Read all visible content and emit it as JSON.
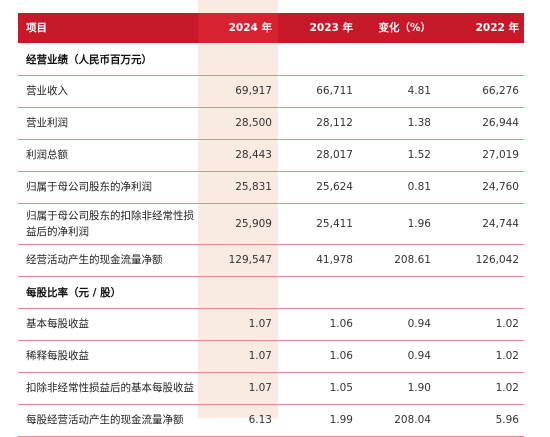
{
  "header": {
    "item": "项目",
    "y2024": "2024 年",
    "y2023": "2023 年",
    "change": "变化（%）",
    "y2022": "2022 年"
  },
  "sections": [
    {
      "title": "经营业绩（人民币百万元）",
      "rows": [
        {
          "label": "营业收入",
          "y2024": "69,917",
          "y2023": "66,711",
          "change": "4.81",
          "y2022": "66,276"
        },
        {
          "label": "营业利润",
          "y2024": "28,500",
          "y2023": "28,112",
          "change": "1.38",
          "y2022": "26,944"
        },
        {
          "label": "利润总额",
          "y2024": "28,443",
          "y2023": "28,017",
          "change": "1.52",
          "y2022": "27,019"
        },
        {
          "label": "归属于母公司股东的净利润",
          "y2024": "25,831",
          "y2023": "25,624",
          "change": "0.81",
          "y2022": "24,760"
        },
        {
          "label": "归属于母公司股东的扣除非经常性损益后的净利润",
          "y2024": "25,909",
          "y2023": "25,411",
          "change": "1.96",
          "y2022": "24,744"
        },
        {
          "label": "经营活动产生的现金流量净额",
          "y2024": "129,547",
          "y2023": "41,978",
          "change": "208.61",
          "y2022": "126,042"
        }
      ]
    },
    {
      "title": "每股比率（元 / 股）",
      "rows": [
        {
          "label": "基本每股收益",
          "y2024": "1.07",
          "y2023": "1.06",
          "change": "0.94",
          "y2022": "1.02"
        },
        {
          "label": "稀释每股收益",
          "y2024": "1.07",
          "y2023": "1.06",
          "change": "0.94",
          "y2022": "1.02"
        },
        {
          "label": "扣除非经常性损益后的基本每股收益",
          "y2024": "1.07",
          "y2023": "1.05",
          "change": "1.90",
          "y2022": "1.02"
        },
        {
          "label": "每股经营活动产生的现金流量净额",
          "y2024": "6.13",
          "y2023": "1.99",
          "change": "208.04",
          "y2022": "5.96"
        }
      ]
    }
  ]
}
